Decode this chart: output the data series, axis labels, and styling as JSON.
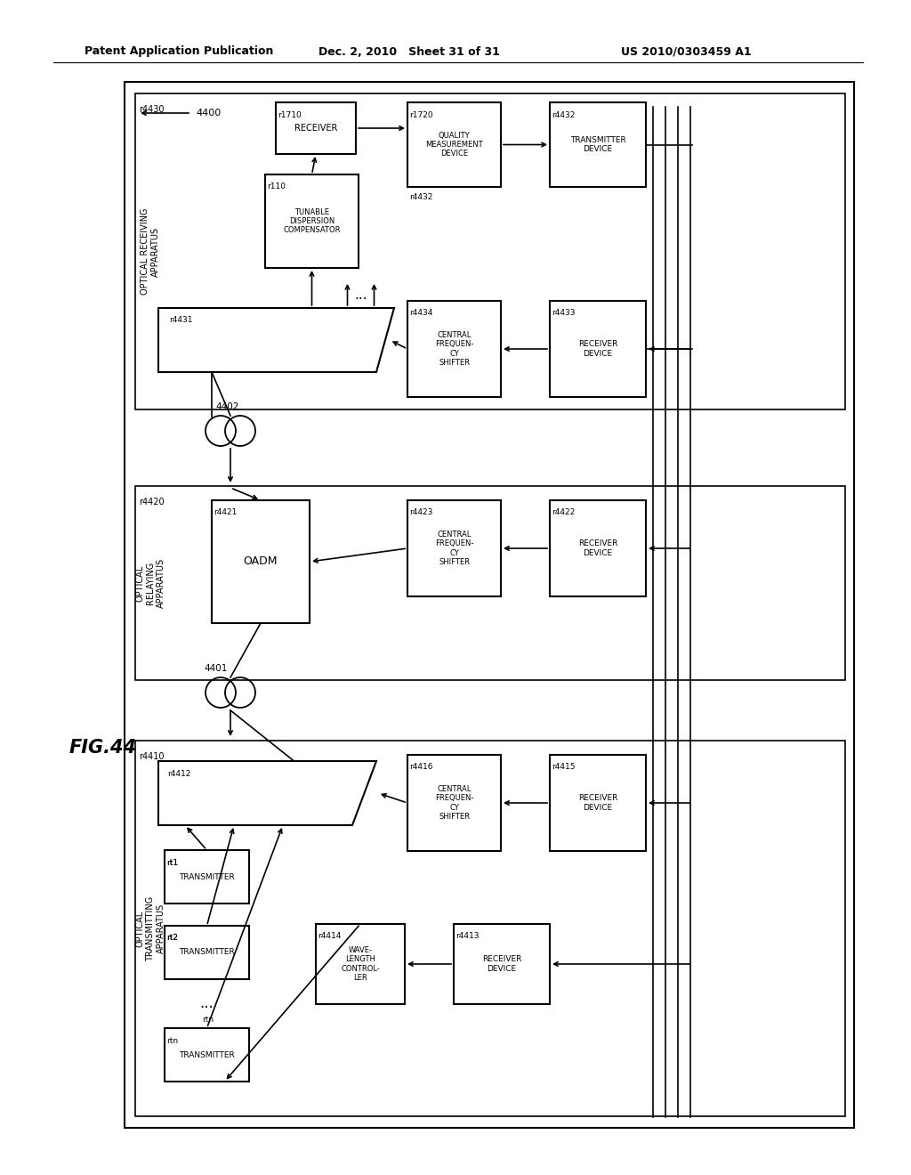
{
  "title_left": "Patent Application Publication",
  "title_mid": "Dec. 2, 2010   Sheet 31 of 31",
  "title_right": "US 2010/0303459 A1",
  "fig_label": "FIG.44",
  "background": "#ffffff"
}
